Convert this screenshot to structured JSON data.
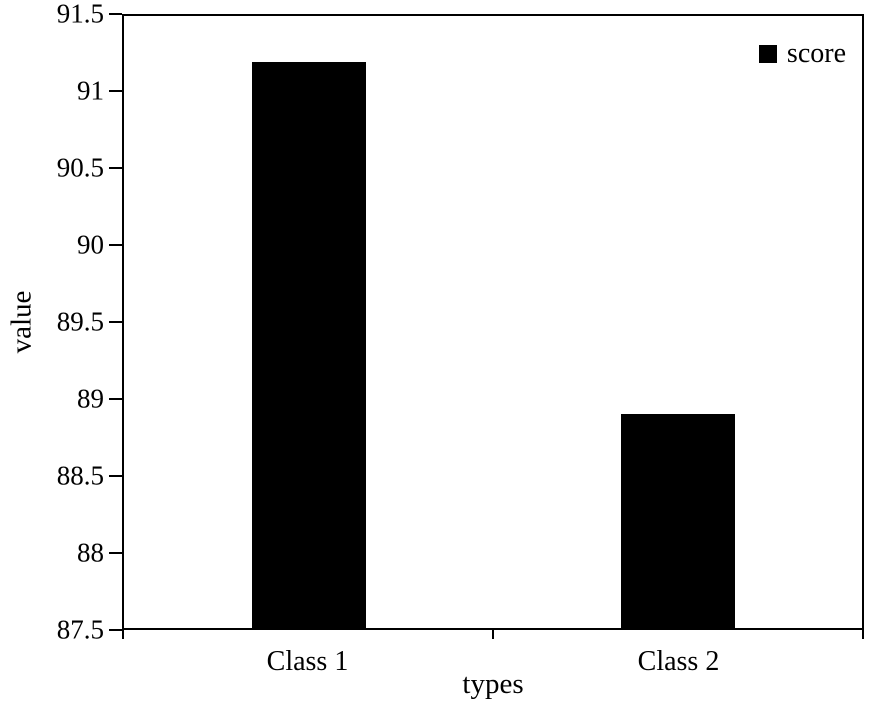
{
  "chart_data": {
    "type": "bar",
    "categories": [
      "Class 1",
      "Class 2"
    ],
    "values": [
      91.2,
      88.9
    ],
    "title": "",
    "xlabel": "types",
    "ylabel": "value",
    "ylim": [
      87.5,
      91.5
    ],
    "ytick_step": 0.5,
    "bar_color": "#000000",
    "bar_width_fraction": 0.155,
    "grid": false,
    "legend": {
      "label": "score",
      "position": "top-right",
      "swatch_color": "#000000"
    }
  }
}
